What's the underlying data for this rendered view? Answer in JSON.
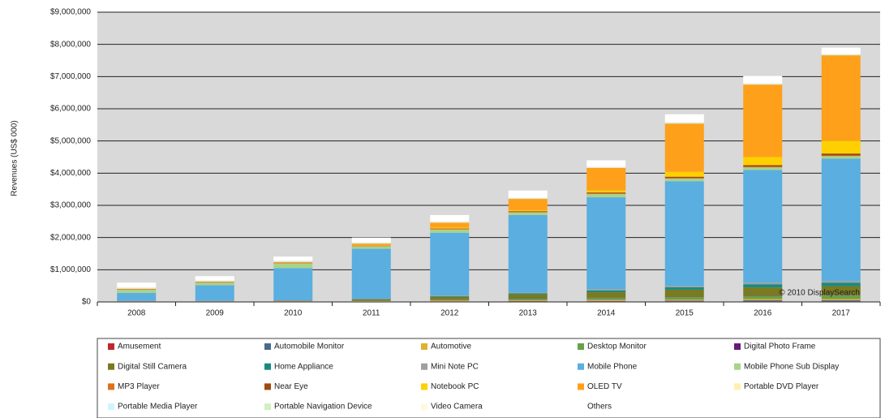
{
  "chart_data": {
    "type": "stacked-bar",
    "y_label": "Revenues (US$ 000)",
    "annotation": "© 2010 DisplaySearch",
    "categories": [
      "2008",
      "2009",
      "2010",
      "2011",
      "2012",
      "2013",
      "2014",
      "2015",
      "2016",
      "2017"
    ],
    "ylim": [
      0,
      9000000
    ],
    "yticks": [
      {
        "value": 0,
        "label": "$0"
      },
      {
        "value": 1000000,
        "label": "$1,000,000"
      },
      {
        "value": 2000000,
        "label": "$2,000,000"
      },
      {
        "value": 3000000,
        "label": "$3,000,000"
      },
      {
        "value": 4000000,
        "label": "$4,000,000"
      },
      {
        "value": 5000000,
        "label": "$5,000,000"
      },
      {
        "value": 6000000,
        "label": "$6,000,000"
      },
      {
        "value": 7000000,
        "label": "$7,000,000"
      },
      {
        "value": 8000000,
        "label": "$8,000,000"
      },
      {
        "value": 9000000,
        "label": "$9,000,000"
      }
    ],
    "grid": true,
    "legend": "bottom",
    "series": [
      {
        "name": "Amusement",
        "color": "#c0262c",
        "values": [
          5000,
          5000,
          5000,
          5000,
          10000,
          10000,
          10000,
          10000,
          10000,
          10000
        ]
      },
      {
        "name": "Automobile Monitor",
        "color": "#4a6b8a",
        "values": [
          5000,
          5000,
          5000,
          10000,
          10000,
          20000,
          20000,
          30000,
          40000,
          40000
        ]
      },
      {
        "name": "Automotive",
        "color": "#e0b030",
        "values": [
          5000,
          5000,
          10000,
          10000,
          20000,
          20000,
          30000,
          30000,
          40000,
          40000
        ]
      },
      {
        "name": "Desktop Monitor",
        "color": "#6aa04a",
        "values": [
          0,
          0,
          0,
          10000,
          30000,
          50000,
          60000,
          80000,
          100000,
          120000
        ]
      },
      {
        "name": "Digital Photo Frame",
        "color": "#6a1a7a",
        "values": [
          5000,
          5000,
          5000,
          5000,
          10000,
          10000,
          10000,
          10000,
          10000,
          10000
        ]
      },
      {
        "name": "Digital Still Camera",
        "color": "#7a7a20",
        "values": [
          5000,
          5000,
          10000,
          40000,
          80000,
          120000,
          170000,
          220000,
          250000,
          270000
        ]
      },
      {
        "name": "Home Appliance",
        "color": "#1a8a80",
        "values": [
          0,
          0,
          5000,
          10000,
          20000,
          40000,
          60000,
          80000,
          100000,
          110000
        ]
      },
      {
        "name": "Mini Note PC",
        "color": "#a0a0a0",
        "values": [
          5000,
          5000,
          10000,
          10000,
          20000,
          30000,
          40000,
          40000,
          50000,
          50000
        ]
      },
      {
        "name": "Mobile Phone",
        "color": "#5aaee0",
        "values": [
          250000,
          490000,
          1000000,
          1550000,
          1950000,
          2400000,
          2850000,
          3250000,
          3500000,
          3800000
        ]
      },
      {
        "name": "Mobile Phone Sub Display",
        "color": "#a6d48a",
        "values": [
          100000,
          80000,
          150000,
          80000,
          100000,
          80000,
          100000,
          80000,
          80000,
          80000
        ]
      },
      {
        "name": "MP3 Player",
        "color": "#e07020",
        "values": [
          20000,
          20000,
          20000,
          20000,
          20000,
          20000,
          20000,
          20000,
          20000,
          20000
        ]
      },
      {
        "name": "Near Eye",
        "color": "#a04a10",
        "values": [
          0,
          0,
          0,
          0,
          10000,
          20000,
          30000,
          40000,
          50000,
          60000
        ]
      },
      {
        "name": "Notebook PC",
        "color": "#ffd000",
        "values": [
          0,
          0,
          0,
          10000,
          30000,
          30000,
          60000,
          150000,
          250000,
          400000
        ]
      },
      {
        "name": "OLED TV",
        "color": "#ffa01a",
        "values": [
          10000,
          10000,
          20000,
          50000,
          150000,
          350000,
          700000,
          1500000,
          2250000,
          2650000
        ]
      },
      {
        "name": "Portable DVD Player",
        "color": "#fff0b0",
        "values": [
          10000,
          10000,
          10000,
          10000,
          10000,
          10000,
          10000,
          10000,
          10000,
          10000
        ]
      },
      {
        "name": "Portable Media Player",
        "color": "#d0f4ff",
        "values": [
          10000,
          10000,
          10000,
          10000,
          10000,
          10000,
          10000,
          10000,
          10000,
          10000
        ]
      },
      {
        "name": "Portable Navigation Device",
        "color": "#d0f0c0",
        "values": [
          10000,
          10000,
          10000,
          10000,
          10000,
          10000,
          10000,
          10000,
          10000,
          10000
        ]
      },
      {
        "name": "Video Camera",
        "color": "#fff8e0",
        "values": [
          10000,
          10000,
          10000,
          10000,
          10000,
          10000,
          10000,
          10000,
          10000,
          10000
        ]
      },
      {
        "name": "Others",
        "color": "#ffffff",
        "values": [
          150000,
          130000,
          130000,
          150000,
          200000,
          220000,
          200000,
          250000,
          230000,
          200000
        ]
      }
    ]
  }
}
